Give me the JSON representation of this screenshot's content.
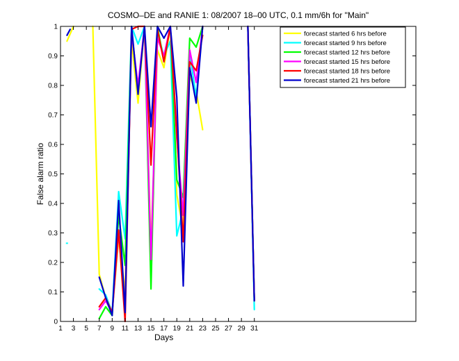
{
  "chart_data": {
    "type": "line",
    "title": "COSMO–DE and RANIE 1: 08/2007 18–00 UTC, 0.1 mm/6h for \"Main\"",
    "xlabel": "Days",
    "ylabel": "False alarm ratio",
    "xlim": [
      1,
      56
    ],
    "ylim": [
      0,
      1
    ],
    "xticks": [
      1,
      3,
      5,
      7,
      9,
      11,
      13,
      15,
      17,
      19,
      21,
      23,
      25,
      27,
      29,
      31
    ],
    "yticks": [
      0,
      0.1,
      0.2,
      0.3,
      0.4,
      0.5,
      0.6,
      0.7,
      0.8,
      0.9,
      1
    ],
    "ytick_labels": [
      "0",
      "0.1",
      "0.2",
      "0.3",
      "0.4",
      "0.5",
      "0.6",
      "0.7",
      "0.8",
      "0.9",
      "1"
    ],
    "legend_position": "top-right",
    "grid": false,
    "series": [
      {
        "name": "forecast started 6 hrs before",
        "color": "#ffff00",
        "segments": [
          [
            [
              2,
              0.95
            ],
            [
              3,
              1.0
            ]
          ],
          [
            [
              6,
              1.0
            ],
            [
              7,
              0.16
            ],
            [
              8,
              0.08
            ],
            [
              9,
              0.03
            ],
            [
              10,
              0.28
            ],
            [
              11,
              0.1
            ],
            [
              12,
              0.95
            ],
            [
              13,
              0.74
            ],
            [
              14,
              1.0
            ],
            [
              15,
              0.25
            ],
            [
              16,
              0.92
            ],
            [
              17,
              0.86
            ],
            [
              18,
              1.0
            ],
            [
              19,
              0.43
            ],
            [
              20,
              0.31
            ],
            [
              21,
              0.83
            ],
            [
              22,
              0.78
            ],
            [
              23,
              0.65
            ]
          ],
          [
            [
              30,
              1.0
            ],
            [
              31,
              0.07
            ]
          ]
        ]
      },
      {
        "name": "forecast started 9 hrs before",
        "color": "#00ffff",
        "segments": [
          [
            [
              7,
              0.11
            ],
            [
              8,
              0.09
            ],
            [
              9,
              0.03
            ],
            [
              10,
              0.44
            ],
            [
              11,
              0.28
            ],
            [
              12,
              1.0
            ],
            [
              13,
              0.94
            ],
            [
              14,
              1.0
            ],
            [
              15,
              0.2
            ],
            [
              16,
              0.98
            ],
            [
              17,
              0.9
            ],
            [
              18,
              0.95
            ],
            [
              19,
              0.29
            ],
            [
              20,
              0.38
            ],
            [
              21,
              0.91
            ],
            [
              22,
              0.76
            ],
            [
              23,
              1.0
            ]
          ],
          [
            [
              30,
              1.0
            ],
            [
              31,
              0.04
            ]
          ]
        ],
        "points": [
          [
            2,
            0.265
          ]
        ]
      },
      {
        "name": "forecast started 12 hrs before",
        "color": "#00ff00",
        "segments": [
          [
            [
              7,
              0.01
            ],
            [
              8,
              0.05
            ],
            [
              9,
              0.02
            ],
            [
              10,
              0.36
            ],
            [
              11,
              0.19
            ],
            [
              12,
              0.99
            ],
            [
              13,
              0.78
            ],
            [
              14,
              1.0
            ],
            [
              15,
              0.11
            ],
            [
              16,
              1.0
            ],
            [
              17,
              0.88
            ],
            [
              18,
              1.0
            ],
            [
              19,
              0.48
            ],
            [
              20,
              0.42
            ],
            [
              21,
              0.96
            ],
            [
              22,
              0.93
            ],
            [
              23,
              1.0
            ]
          ],
          [
            [
              30,
              1.0
            ],
            [
              31,
              0.07
            ]
          ]
        ]
      },
      {
        "name": "forecast started 15 hrs before",
        "color": "#ff00ff",
        "segments": [
          [
            [
              7,
              0.04
            ],
            [
              8,
              0.07
            ],
            [
              9,
              0.03
            ],
            [
              10,
              0.3
            ],
            [
              11,
              0.05
            ],
            [
              12,
              0.98
            ],
            [
              13,
              0.8
            ],
            [
              14,
              1.0
            ],
            [
              15,
              0.21
            ],
            [
              16,
              0.96
            ],
            [
              17,
              0.9
            ],
            [
              18,
              1.0
            ],
            [
              19,
              0.62
            ],
            [
              20,
              0.36
            ],
            [
              21,
              0.92
            ],
            [
              22,
              0.81
            ],
            [
              23,
              1.0
            ]
          ],
          [
            [
              30,
              1.0
            ],
            [
              31,
              0.07
            ]
          ]
        ]
      },
      {
        "name": "forecast started 18 hrs before",
        "color": "#ff0000",
        "segments": [
          [
            [
              7,
              0.05
            ],
            [
              8,
              0.08
            ],
            [
              9,
              0.03
            ],
            [
              10,
              0.31
            ],
            [
              11,
              0.0
            ],
            [
              12,
              0.99
            ],
            [
              13,
              1.0
            ],
            [
              14,
              1.0
            ],
            [
              15,
              0.53
            ],
            [
              16,
              0.99
            ],
            [
              17,
              0.88
            ],
            [
              18,
              1.0
            ],
            [
              19,
              0.64
            ],
            [
              20,
              0.27
            ],
            [
              21,
              0.88
            ],
            [
              22,
              0.85
            ],
            [
              23,
              0.97
            ]
          ],
          [
            [
              30,
              1.0
            ],
            [
              31,
              0.07
            ]
          ]
        ]
      },
      {
        "name": "forecast started 21 hrs before",
        "color": "#0000cc",
        "segments": [
          [
            [
              2,
              0.97
            ],
            [
              2.5,
              0.99
            ]
          ],
          [
            [
              7,
              0.15
            ],
            [
              8,
              0.08
            ],
            [
              9,
              0.02
            ],
            [
              10,
              0.41
            ],
            [
              11,
              0.03
            ],
            [
              12,
              1.0
            ],
            [
              13,
              0.77
            ],
            [
              14,
              1.0
            ],
            [
              15,
              0.66
            ],
            [
              16,
              1.0
            ],
            [
              17,
              0.96
            ],
            [
              18,
              1.0
            ],
            [
              19,
              0.76
            ],
            [
              20,
              0.12
            ],
            [
              21,
              0.86
            ],
            [
              22,
              0.74
            ],
            [
              23,
              1.0
            ]
          ],
          [
            [
              30,
              1.0
            ],
            [
              31,
              0.07
            ]
          ]
        ]
      }
    ]
  }
}
